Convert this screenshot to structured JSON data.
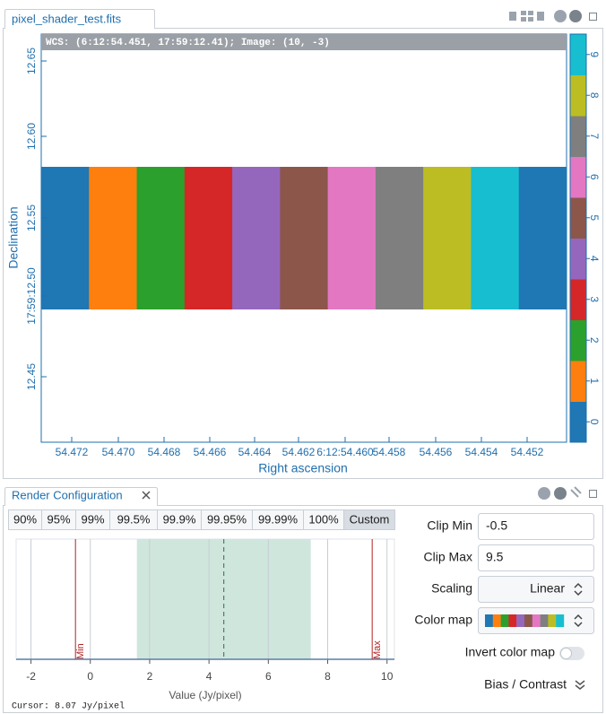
{
  "image_panel": {
    "tab": "pixel_shader_test.fits",
    "wcs_info": "WCS: (6:12:54.451, 17:59:12.41); Image: (10, -3)",
    "x_axis_label": "Right ascension",
    "y_axis_label": "Declination",
    "x_ticks": [
      "54.472",
      "54.470",
      "54.468",
      "54.466",
      "54.464",
      "54.462",
      "6:12:54.460",
      "54.458",
      "54.456",
      "54.454",
      "54.452"
    ],
    "y_ticks": [
      "12.65",
      "12.60",
      "12.55",
      "17:59:12.50",
      "12.45"
    ],
    "pixel_colors": [
      "#1f77b4",
      "#ff7f0e",
      "#2ca02c",
      "#d62728",
      "#9467bd",
      "#8c564b",
      "#e377c2",
      "#7f7f7f",
      "#bcbd22",
      "#17becf",
      "#1f77b4"
    ],
    "colorbar": [
      {
        "label": "0",
        "color": "#1f77b4"
      },
      {
        "label": "1",
        "color": "#ff7f0e"
      },
      {
        "label": "2",
        "color": "#2ca02c"
      },
      {
        "label": "3",
        "color": "#d62728"
      },
      {
        "label": "4",
        "color": "#9467bd"
      },
      {
        "label": "5",
        "color": "#8c564b"
      },
      {
        "label": "6",
        "color": "#e377c2"
      },
      {
        "label": "7",
        "color": "#7f7f7f"
      },
      {
        "label": "8",
        "color": "#bcbd22"
      },
      {
        "label": "9",
        "color": "#17becf"
      }
    ]
  },
  "render_panel": {
    "tab": "Render Configuration",
    "percentiles": [
      "90%",
      "95%",
      "99%",
      "99.5%",
      "99.9%",
      "99.95%",
      "99.99%",
      "100%",
      "Custom"
    ],
    "histogram": {
      "x_label": "Value (Jy/pixel)",
      "xlim": [
        -2.5,
        10.25
      ],
      "xticks": [
        -2,
        0,
        2,
        4,
        6,
        8,
        10
      ],
      "min_marker": "Min",
      "max_marker": "Max",
      "shaded_range": [
        1.57,
        7.43
      ],
      "median": 4.5,
      "cursor": "Cursor: 8.07 Jy/pixel"
    },
    "clip_min_label": "Clip Min",
    "clip_min": -0.5,
    "clip_max_label": "Clip Max",
    "clip_max": 9.5,
    "scaling_label": "Scaling",
    "scaling": "Linear",
    "color_map_label": "Color map",
    "invert_label": "Invert color map",
    "bias_contrast": "Bias / Contrast"
  }
}
